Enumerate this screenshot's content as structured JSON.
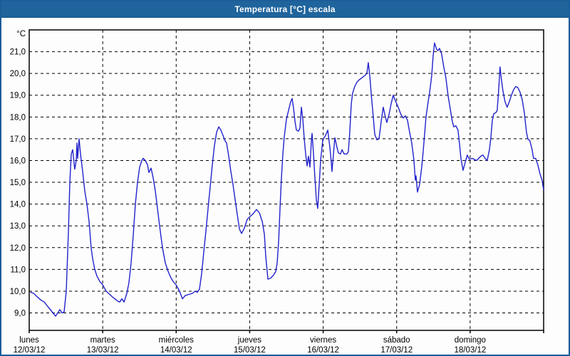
{
  "window": {
    "title": "Temperatura [°C] escala"
  },
  "colors": {
    "titlebar_bg": "#1f649c",
    "window_border": "#1c5d99",
    "line": "#2222cc",
    "grid": "#000000",
    "text": "#000000",
    "background": "#fdfdfd"
  },
  "chart_data": {
    "type": "line",
    "title": "Temperatura [°C] escala",
    "ylabel_unit": "°C",
    "grid": "dashed horizontal at 1°C steps, dashed vertical at day boundaries",
    "legend": "none",
    "y_axis": {
      "tick_values": [
        21,
        20,
        19,
        18,
        17,
        16,
        15,
        14,
        13,
        12,
        11,
        10,
        9
      ],
      "tick_labels": [
        "21,0",
        "20,0",
        "19,0",
        "18,0",
        "17,0",
        "16,0",
        "15,0",
        "14,0",
        "13,0",
        "12,0",
        "11,0",
        "10,0",
        "9,0"
      ],
      "ylim": [
        8.2,
        22.0
      ]
    },
    "x_axis": {
      "xlim_days": [
        0,
        7
      ],
      "days": [
        {
          "name": "lunes",
          "date": "12/03/12"
        },
        {
          "name": "martes",
          "date": "13/03/12"
        },
        {
          "name": "miércoles",
          "date": "14/03/12"
        },
        {
          "name": "jueves",
          "date": "15/03/12"
        },
        {
          "name": "viernes",
          "date": "16/03/12"
        },
        {
          "name": "sábado",
          "date": "17/03/12"
        },
        {
          "name": "domingo",
          "date": "18/03/12"
        }
      ]
    },
    "series": [
      {
        "name": "Temperatura",
        "color": "#2222cc",
        "points": [
          [
            0.02,
            9.95
          ],
          [
            0.06,
            9.9
          ],
          [
            0.107,
            9.75
          ],
          [
            0.155,
            9.6
          ],
          [
            0.204,
            9.5
          ],
          [
            0.252,
            9.3
          ],
          [
            0.3,
            9.1
          ],
          [
            0.359,
            8.85
          ],
          [
            0.417,
            9.15
          ],
          [
            0.446,
            9.0
          ],
          [
            0.475,
            9.05
          ],
          [
            0.504,
            10.0
          ],
          [
            0.533,
            12.7
          ],
          [
            0.553,
            15.0
          ],
          [
            0.572,
            16.3
          ],
          [
            0.591,
            16.5
          ],
          [
            0.62,
            15.6
          ],
          [
            0.64,
            16.0
          ],
          [
            0.65,
            16.8
          ],
          [
            0.659,
            16.1
          ],
          [
            0.679,
            17.0
          ],
          [
            0.698,
            16.3
          ],
          [
            0.727,
            15.5
          ],
          [
            0.756,
            14.6
          ],
          [
            0.785,
            14.0
          ],
          [
            0.814,
            13.2
          ],
          [
            0.843,
            12.0
          ],
          [
            0.863,
            11.5
          ],
          [
            0.892,
            11.0
          ],
          [
            0.921,
            10.7
          ],
          [
            0.96,
            10.45
          ],
          [
            0.999,
            10.3
          ],
          [
            1.047,
            10.0
          ],
          [
            1.096,
            9.85
          ],
          [
            1.144,
            9.7
          ],
          [
            1.202,
            9.55
          ],
          [
            1.231,
            9.5
          ],
          [
            1.26,
            9.65
          ],
          [
            1.29,
            9.5
          ],
          [
            1.328,
            9.9
          ],
          [
            1.357,
            10.4
          ],
          [
            1.386,
            11.3
          ],
          [
            1.416,
            12.6
          ],
          [
            1.445,
            14.0
          ],
          [
            1.474,
            15.0
          ],
          [
            1.503,
            15.7
          ],
          [
            1.532,
            16.0
          ],
          [
            1.551,
            16.1
          ],
          [
            1.58,
            16.0
          ],
          [
            1.61,
            15.8
          ],
          [
            1.629,
            15.45
          ],
          [
            1.658,
            15.65
          ],
          [
            1.687,
            15.2
          ],
          [
            1.716,
            14.6
          ],
          [
            1.745,
            13.8
          ],
          [
            1.774,
            13.0
          ],
          [
            1.813,
            12.0
          ],
          [
            1.852,
            11.3
          ],
          [
            1.891,
            10.9
          ],
          [
            1.93,
            10.6
          ],
          [
            1.968,
            10.4
          ],
          [
            1.997,
            10.3
          ],
          [
            2.046,
            10.0
          ],
          [
            2.085,
            9.65
          ],
          [
            2.123,
            9.8
          ],
          [
            2.172,
            9.85
          ],
          [
            2.22,
            9.9
          ],
          [
            2.259,
            10.0
          ],
          [
            2.288,
            9.95
          ],
          [
            2.317,
            10.1
          ],
          [
            2.346,
            10.8
          ],
          [
            2.375,
            11.8
          ],
          [
            2.405,
            12.8
          ],
          [
            2.434,
            13.8
          ],
          [
            2.463,
            14.8
          ],
          [
            2.492,
            15.8
          ],
          [
            2.521,
            16.7
          ],
          [
            2.55,
            17.3
          ],
          [
            2.579,
            17.55
          ],
          [
            2.608,
            17.4
          ],
          [
            2.637,
            17.15
          ],
          [
            2.666,
            16.9
          ],
          [
            2.686,
            16.8
          ],
          [
            2.715,
            16.2
          ],
          [
            2.744,
            15.5
          ],
          [
            2.773,
            14.9
          ],
          [
            2.802,
            14.2
          ],
          [
            2.832,
            13.5
          ],
          [
            2.861,
            12.85
          ],
          [
            2.89,
            12.65
          ],
          [
            2.928,
            12.9
          ],
          [
            2.967,
            13.3
          ],
          [
            2.996,
            13.4
          ],
          [
            3.045,
            13.55
          ],
          [
            3.093,
            13.75
          ],
          [
            3.132,
            13.6
          ],
          [
            3.171,
            13.2
          ],
          [
            3.2,
            12.6
          ],
          [
            3.219,
            11.6
          ],
          [
            3.248,
            10.55
          ],
          [
            3.287,
            10.6
          ],
          [
            3.326,
            10.75
          ],
          [
            3.355,
            10.9
          ],
          [
            3.374,
            11.3
          ],
          [
            3.394,
            12.3
          ],
          [
            3.413,
            13.8
          ],
          [
            3.432,
            15.2
          ],
          [
            3.452,
            16.3
          ],
          [
            3.471,
            17.1
          ],
          [
            3.5,
            17.9
          ],
          [
            3.529,
            18.3
          ],
          [
            3.558,
            18.7
          ],
          [
            3.578,
            18.85
          ],
          [
            3.597,
            18.4
          ],
          [
            3.616,
            17.8
          ],
          [
            3.636,
            17.4
          ],
          [
            3.665,
            17.35
          ],
          [
            3.684,
            17.5
          ],
          [
            3.704,
            18.45
          ],
          [
            3.723,
            17.9
          ],
          [
            3.742,
            17.0
          ],
          [
            3.762,
            16.3
          ],
          [
            3.781,
            15.75
          ],
          [
            3.8,
            16.2
          ],
          [
            3.82,
            15.7
          ],
          [
            3.839,
            16.9
          ],
          [
            3.849,
            17.25
          ],
          [
            3.868,
            16.3
          ],
          [
            3.888,
            15.2
          ],
          [
            3.907,
            14.2
          ],
          [
            3.926,
            13.8
          ],
          [
            3.946,
            14.9
          ],
          [
            3.965,
            16.0
          ],
          [
            3.994,
            16.95
          ],
          [
            4.033,
            17.15
          ],
          [
            4.062,
            17.4
          ],
          [
            4.091,
            16.6
          ],
          [
            4.111,
            15.9
          ],
          [
            4.12,
            15.5
          ],
          [
            4.14,
            16.3
          ],
          [
            4.159,
            17.05
          ],
          [
            4.188,
            16.6
          ],
          [
            4.207,
            16.35
          ],
          [
            4.236,
            16.3
          ],
          [
            4.256,
            16.5
          ],
          [
            4.285,
            16.3
          ],
          [
            4.323,
            16.3
          ],
          [
            4.343,
            16.4
          ],
          [
            4.362,
            17.3
          ],
          [
            4.382,
            18.6
          ],
          [
            4.401,
            19.1
          ],
          [
            4.43,
            19.4
          ],
          [
            4.459,
            19.6
          ],
          [
            4.488,
            19.7
          ],
          [
            4.527,
            19.8
          ],
          [
            4.566,
            19.9
          ],
          [
            4.595,
            20.0
          ],
          [
            4.614,
            20.5
          ],
          [
            4.634,
            19.9
          ],
          [
            4.653,
            19.1
          ],
          [
            4.682,
            18.0
          ],
          [
            4.702,
            17.2
          ],
          [
            4.731,
            16.95
          ],
          [
            4.76,
            17.0
          ],
          [
            4.789,
            17.8
          ],
          [
            4.818,
            18.45
          ],
          [
            4.847,
            18.0
          ],
          [
            4.866,
            17.75
          ],
          [
            4.895,
            18.1
          ],
          [
            4.924,
            18.6
          ],
          [
            4.953,
            19.0
          ],
          [
            4.982,
            18.75
          ],
          [
            5.021,
            18.45
          ],
          [
            5.06,
            18.1
          ],
          [
            5.089,
            17.95
          ],
          [
            5.118,
            18.05
          ],
          [
            5.147,
            17.85
          ],
          [
            5.176,
            17.3
          ],
          [
            5.205,
            16.8
          ],
          [
            5.235,
            16.0
          ],
          [
            5.254,
            15.1
          ],
          [
            5.264,
            15.3
          ],
          [
            5.274,
            14.9
          ],
          [
            5.283,
            14.55
          ],
          [
            5.312,
            14.9
          ],
          [
            5.341,
            15.7
          ],
          [
            5.361,
            16.4
          ],
          [
            5.38,
            17.2
          ],
          [
            5.399,
            18.0
          ],
          [
            5.428,
            18.7
          ],
          [
            5.448,
            19.1
          ],
          [
            5.477,
            19.9
          ],
          [
            5.496,
            20.8
          ],
          [
            5.515,
            21.4
          ],
          [
            5.545,
            21.1
          ],
          [
            5.564,
            21.05
          ],
          [
            5.583,
            21.15
          ],
          [
            5.612,
            20.9
          ],
          [
            5.641,
            20.3
          ],
          [
            5.67,
            19.8
          ],
          [
            5.699,
            19.0
          ],
          [
            5.728,
            18.4
          ],
          [
            5.757,
            17.8
          ],
          [
            5.777,
            17.55
          ],
          [
            5.806,
            17.6
          ],
          [
            5.835,
            17.4
          ],
          [
            5.854,
            16.8
          ],
          [
            5.874,
            16.1
          ],
          [
            5.903,
            15.55
          ],
          [
            5.932,
            15.9
          ],
          [
            5.961,
            16.25
          ],
          [
            5.99,
            16.05
          ],
          [
            6.029,
            16.1
          ],
          [
            6.058,
            16.05
          ],
          [
            6.087,
            16.0
          ],
          [
            6.116,
            16.1
          ],
          [
            6.145,
            16.2
          ],
          [
            6.174,
            16.25
          ],
          [
            6.203,
            16.1
          ],
          [
            6.232,
            16.0
          ],
          [
            6.262,
            16.5
          ],
          [
            6.281,
            17.0
          ],
          [
            6.3,
            17.8
          ],
          [
            6.32,
            18.15
          ],
          [
            6.349,
            18.2
          ],
          [
            6.368,
            18.3
          ],
          [
            6.387,
            19.2
          ],
          [
            6.407,
            20.3
          ],
          [
            6.426,
            19.7
          ],
          [
            6.446,
            19.2
          ],
          [
            6.475,
            18.7
          ],
          [
            6.504,
            18.45
          ],
          [
            6.533,
            18.7
          ],
          [
            6.562,
            19.0
          ],
          [
            6.591,
            19.25
          ],
          [
            6.62,
            19.4
          ],
          [
            6.649,
            19.35
          ],
          [
            6.678,
            19.15
          ],
          [
            6.708,
            18.8
          ],
          [
            6.737,
            18.2
          ],
          [
            6.766,
            17.3
          ],
          [
            6.785,
            17.0
          ],
          [
            6.814,
            16.9
          ],
          [
            6.843,
            16.5
          ],
          [
            6.862,
            16.1
          ],
          [
            6.891,
            16.1
          ],
          [
            6.921,
            15.8
          ],
          [
            6.95,
            15.4
          ],
          [
            6.979,
            15.1
          ],
          [
            7.0,
            14.65
          ]
        ]
      }
    ]
  }
}
